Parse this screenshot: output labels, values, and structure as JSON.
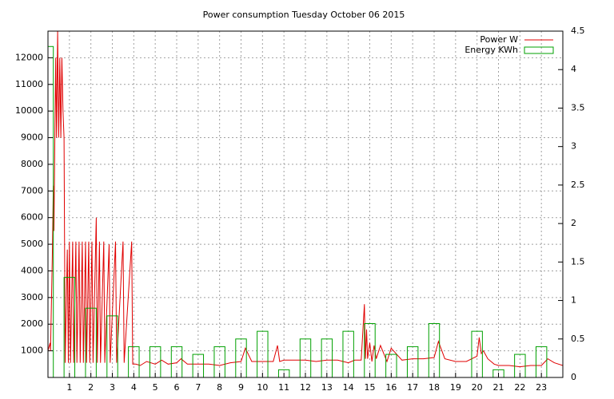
{
  "chart_data": {
    "type": "line",
    "title": "Power consumption Tuesday October 06 2015",
    "xlim": [
      0,
      24
    ],
    "xticks": [
      1,
      2,
      3,
      4,
      5,
      6,
      7,
      8,
      9,
      10,
      11,
      12,
      13,
      14,
      15,
      16,
      17,
      18,
      19,
      20,
      21,
      22,
      23
    ],
    "ylim": [
      0,
      13000
    ],
    "yticks": [
      1000,
      2000,
      3000,
      4000,
      5000,
      6000,
      7000,
      8000,
      9000,
      10000,
      11000,
      12000
    ],
    "y2lim": [
      0,
      4.5
    ],
    "y2ticks": [
      0,
      0.5,
      1,
      1.5,
      2,
      2.5,
      3,
      3.5,
      4,
      4.5
    ],
    "grid": true,
    "legend": "top-right",
    "series": [
      {
        "name": "Power W",
        "type": "line",
        "color": "#e00000",
        "x": [
          0,
          0.1,
          0.12,
          0.2,
          0.25,
          0.28,
          0.32,
          0.36,
          0.4,
          0.45,
          0.5,
          0.55,
          0.6,
          0.65,
          0.7,
          0.75,
          0.8,
          0.9,
          0.95,
          1.0,
          1.05,
          1.15,
          1.2,
          1.3,
          1.35,
          1.45,
          1.5,
          1.6,
          1.65,
          1.75,
          1.8,
          1.9,
          1.95,
          2.05,
          2.1,
          2.25,
          2.3,
          2.4,
          2.45,
          2.6,
          2.65,
          2.85,
          2.9,
          3.15,
          3.2,
          3.5,
          3.55,
          3.9,
          3.95,
          4.1,
          4.3,
          4.6,
          5,
          5.3,
          5.6,
          6,
          6.2,
          6.5,
          7,
          7.5,
          8,
          8.5,
          9,
          9.2,
          9.5,
          10,
          10.5,
          10.7,
          10.8,
          11,
          11.5,
          12,
          12.5,
          13,
          13.5,
          14,
          14.3,
          14.6,
          14.75,
          14.8,
          14.85,
          14.9,
          15.0,
          15.1,
          15.2,
          15.3,
          15.5,
          15.8,
          16,
          16.5,
          17,
          17.5,
          18,
          18.2,
          18.5,
          19,
          19.5,
          20,
          20.1,
          20.2,
          20.3,
          20.5,
          20.8,
          21,
          21.5,
          22,
          22.5,
          23,
          23.3,
          23.6,
          24
        ],
        "values": [
          1000,
          1300,
          1000,
          4500,
          7200,
          5500,
          9000,
          12000,
          9000,
          13000,
          9000,
          12000,
          9000,
          12000,
          10000,
          9000,
          550,
          4800,
          550,
          5100,
          550,
          5100,
          550,
          5100,
          550,
          5100,
          550,
          5100,
          550,
          5100,
          550,
          5100,
          550,
          5100,
          550,
          6000,
          550,
          5100,
          550,
          5100,
          550,
          5000,
          550,
          5100,
          550,
          5100,
          550,
          5100,
          500,
          500,
          450,
          600,
          500,
          650,
          500,
          550,
          700,
          500,
          500,
          500,
          450,
          550,
          600,
          1100,
          600,
          600,
          600,
          1200,
          600,
          650,
          650,
          650,
          600,
          650,
          650,
          550,
          650,
          650,
          2750,
          700,
          1800,
          700,
          1300,
          600,
          1200,
          700,
          1200,
          600,
          1100,
          650,
          700,
          700,
          750,
          1350,
          700,
          600,
          600,
          800,
          1500,
          900,
          1000,
          700,
          500,
          450,
          450,
          400,
          450,
          450,
          700,
          550,
          450
        ]
      },
      {
        "name": "Energy KWh",
        "type": "bar",
        "color": "#00a000",
        "axis": "y2",
        "x": [
          0,
          1,
          2,
          3,
          4,
          5,
          6,
          7,
          8,
          9,
          10,
          11,
          12,
          13,
          14,
          15,
          16,
          17,
          18,
          19,
          20,
          21,
          22,
          23
        ],
        "values": [
          4.3,
          1.3,
          0.9,
          0.8,
          0.4,
          0.4,
          0.4,
          0.3,
          0.4,
          0.5,
          0.6,
          0.1,
          0.5,
          0.5,
          0.6,
          0.7,
          0.3,
          0.4,
          0.7,
          0,
          0.6,
          0.1,
          0.3,
          0.4
        ]
      }
    ]
  }
}
